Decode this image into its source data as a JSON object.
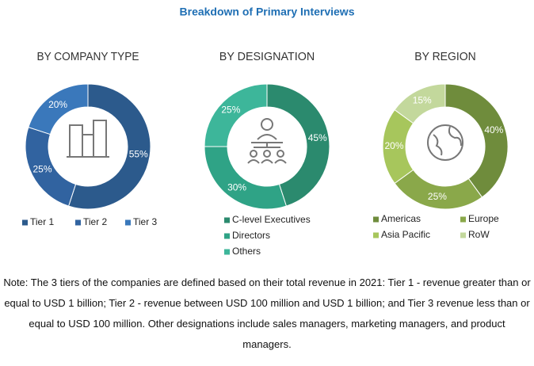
{
  "title": "Breakdown of Primary Interviews",
  "chart_data": [
    {
      "type": "donut",
      "title": "BY COMPANY TYPE",
      "categories": [
        "Tier 1",
        "Tier 2",
        "Tier 3"
      ],
      "values": [
        55,
        25,
        20
      ],
      "value_labels": [
        "55%",
        "25%",
        "20%"
      ],
      "colors": [
        "#2c5a8c",
        "#3163a0",
        "#3a78bb"
      ]
    },
    {
      "type": "donut",
      "title": "BY DESIGNATION",
      "categories": [
        "C-level Executives",
        "Directors",
        "Others"
      ],
      "values": [
        45,
        30,
        25
      ],
      "value_labels": [
        "45%",
        "30%",
        "25%"
      ],
      "colors": [
        "#2b8a6e",
        "#2fa386",
        "#3db69a"
      ]
    },
    {
      "type": "donut",
      "title": "BY REGION",
      "categories": [
        "Americas",
        "Europe",
        "Asia Pacific",
        "RoW"
      ],
      "values": [
        40,
        25,
        20,
        15
      ],
      "value_labels": [
        "40%",
        "25%",
        "20%",
        "15%"
      ],
      "colors": [
        "#6f8c3c",
        "#8aa84a",
        "#a7c65c",
        "#c3d89c"
      ]
    }
  ],
  "note": "Note: The 3 tiers of the companies are defined based on their total revenue in 2021: Tier 1 - revenue greater than or equal to USD 1 billion; Tier 2 - revenue between USD 100 million and USD 1 billion; and Tier 3 revenue less than or equal to USD 100 million. Other designations include sales managers, marketing managers, and product managers."
}
